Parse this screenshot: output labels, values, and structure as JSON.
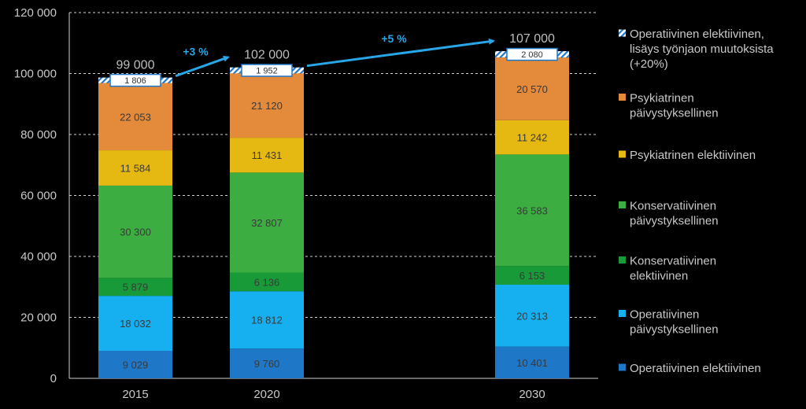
{
  "chart_data": {
    "type": "bar",
    "stacked": true,
    "categories": [
      "2015",
      "2020",
      "2030"
    ],
    "ylim": [
      0,
      120000
    ],
    "yticks": [
      "0",
      "20 000",
      "40 000",
      "60 000",
      "80 000",
      "100 000",
      "120 000"
    ],
    "grid": true,
    "legend_position": "right",
    "series": [
      {
        "name": "Operatiivinen elektiivinen",
        "color": "#1f77c8",
        "values": [
          9029,
          9760,
          10401
        ],
        "labels": [
          "9 029",
          "9 760",
          "10 401"
        ]
      },
      {
        "name": "Operatiivinen päivystyksellinen",
        "color": "#16aff0",
        "values": [
          18032,
          18812,
          20313
        ],
        "labels": [
          "18 032",
          "18 812",
          "20 313"
        ]
      },
      {
        "name": "Konservatiivinen elektiivinen",
        "color": "#179a37",
        "values": [
          5879,
          6136,
          6153
        ],
        "labels": [
          "5 879",
          "6 136",
          "6 153"
        ]
      },
      {
        "name": "Konservatiivinen päivystyksellinen",
        "color": "#3cad40",
        "values": [
          30300,
          32807,
          36583
        ],
        "labels": [
          "30 300",
          "32 807",
          "36 583"
        ]
      },
      {
        "name": "Psykiatrinen elektiivinen",
        "color": "#e6b812",
        "values": [
          11584,
          11431,
          11242
        ],
        "labels": [
          "11 584",
          "11 431",
          "11 242"
        ]
      },
      {
        "name": "Psykiatrinen päivystyksellinen",
        "color": "#e38a3b",
        "values": [
          22053,
          21120,
          20570
        ],
        "labels": [
          "22 053",
          "21 120",
          "20 570"
        ]
      },
      {
        "name": "Operatiivinen elektiivinen, lisäys työnjaon muutoksista (+20%)",
        "color": "#1f77c8",
        "pattern": "hatched",
        "values": [
          1806,
          1952,
          2080
        ],
        "labels": [
          "1 806",
          "1 952",
          "2 080"
        ]
      }
    ],
    "totals": [
      "99 000",
      "102 000",
      "107 000"
    ],
    "annotations": [
      {
        "text": "+3 %",
        "from": "2015",
        "to": "2020"
      },
      {
        "text": "+5 %",
        "from": "2020",
        "to": "2030"
      }
    ],
    "legend": [
      {
        "lines": [
          "Operatiivinen elektiivinen,",
          "lisäys työnjaon muutoksista",
          "(+20%)"
        ],
        "series": 6
      },
      {
        "lines": [
          "Psykiatrinen",
          "päivystyksellinen"
        ],
        "series": 5
      },
      {
        "lines": [
          "Psykiatrinen elektiivinen"
        ],
        "series": 4
      },
      {
        "lines": [
          "Konservatiivinen",
          "päivystyksellinen"
        ],
        "series": 3
      },
      {
        "lines": [
          "Konservatiivinen",
          "elektiivinen"
        ],
        "series": 2
      },
      {
        "lines": [
          "Operatiivinen",
          "päivystyksellinen"
        ],
        "series": 1
      },
      {
        "lines": [
          "Operatiivinen elektiivinen"
        ],
        "series": 0
      }
    ]
  }
}
